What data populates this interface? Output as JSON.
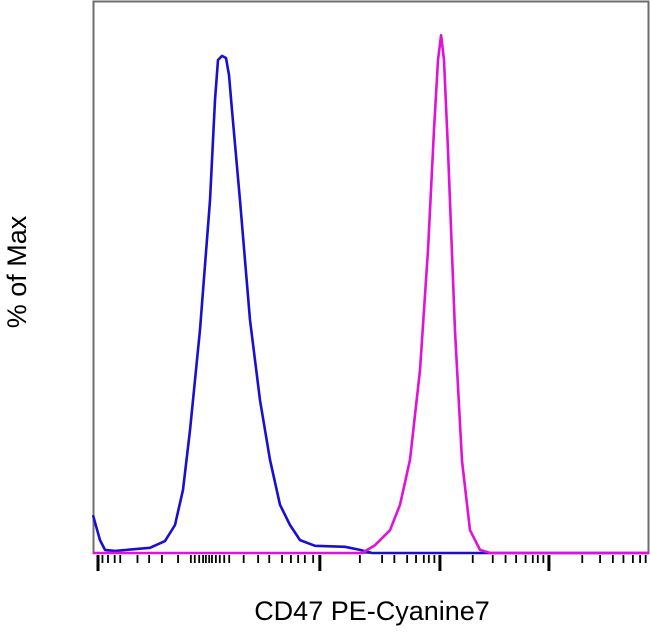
{
  "chart_data": {
    "type": "line",
    "title": "",
    "xlabel": "CD47 PE-Cyanine7",
    "ylabel": "% of Max",
    "xlim": [
      0,
      1000
    ],
    "ylim": [
      0,
      106.6
    ],
    "grid": false,
    "legend": "none",
    "x_ticks_major": [
      9,
      408,
      624,
      820
    ],
    "x_ticks_minor": [
      17,
      27,
      39,
      49,
      80,
      101,
      124,
      153,
      176,
      183,
      191,
      198,
      203,
      209,
      214,
      221,
      228,
      236,
      245,
      271,
      297,
      317,
      340,
      356,
      369,
      381,
      396,
      480,
      520,
      542,
      565,
      581,
      595,
      604,
      614,
      683,
      719,
      742,
      761,
      778,
      791,
      800,
      810,
      880,
      912,
      935,
      954,
      971,
      984,
      994
    ],
    "series": [
      {
        "color": "#1a0fd0",
        "x": [
          0,
          12.6,
          21.6,
          39.6,
          102.5,
          129.5,
          147.5,
          161.9,
          174.5,
          192.4,
          210.4,
          219.4,
          224.8,
          232,
          239.2,
          244.6,
          250,
          264.4,
          282.4,
          300.4,
          318.4,
          336.4,
          354.3,
          372.3,
          399.3,
          453.2,
          480.2,
          501.8,
          1000
        ],
        "y": [
          7.3,
          2.5,
          0.6,
          0.4,
          1.0,
          2.3,
          5.4,
          12.2,
          23.7,
          43.1,
          68.1,
          87.5,
          95.2,
          96,
          95.6,
          92.3,
          85.5,
          68.1,
          45,
          29.5,
          18,
          9.3,
          5.4,
          2.5,
          1.4,
          1.2,
          0.6,
          0,
          0
        ]
      },
      {
        "color": "#e012d8",
        "x": [
          0,
          483.8,
          507.2,
          534.2,
          552.2,
          570.1,
          588.1,
          602.5,
          613.3,
          620.5,
          626,
          631.3,
          638.5,
          651.1,
          663.7,
          678,
          696,
          714,
          1000
        ],
        "y": [
          0,
          0,
          1.5,
          4.4,
          9.3,
          18,
          35.3,
          58.5,
          81.7,
          95.2,
          100,
          95.2,
          77.8,
          42.9,
          17.8,
          4.4,
          0.6,
          0,
          0
        ]
      }
    ]
  }
}
